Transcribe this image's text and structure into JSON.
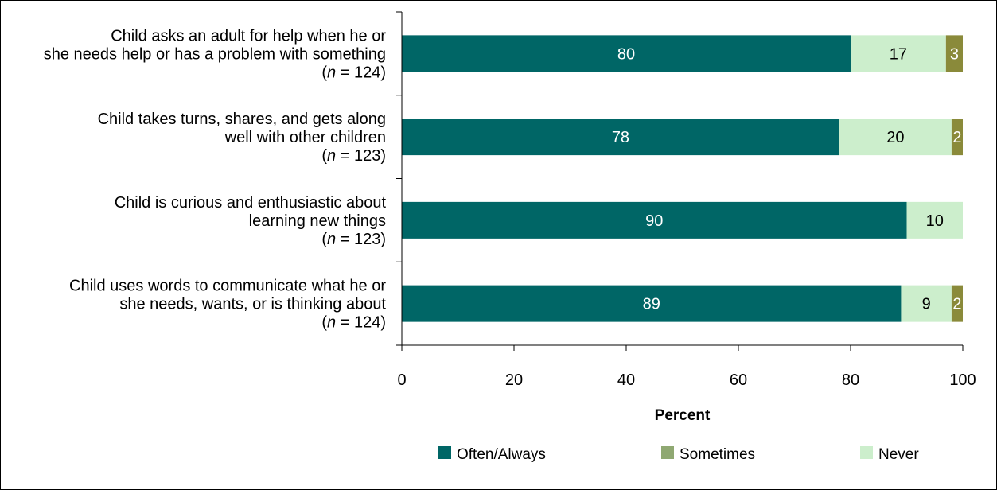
{
  "chart_data": {
    "type": "bar",
    "orientation": "horizontal",
    "stacked": true,
    "categories": [
      {
        "label": "Child asks an adult for help when he or she needs help or has a problem with something (n = 124)",
        "lines": [
          [
            {
              "text": "Child asks an adult for help when he or"
            }
          ],
          [
            {
              "text": "she needs help or has a problem with something"
            }
          ],
          [
            {
              "text": "("
            },
            {
              "text": "n",
              "italic": true
            },
            {
              "text": " = 124)"
            }
          ]
        ]
      },
      {
        "label": "Child takes turns, shares, and gets along well with other children (n = 123)",
        "lines": [
          [
            {
              "text": "Child takes turns, shares, and gets along"
            }
          ],
          [
            {
              "text": "well with other children"
            }
          ],
          [
            {
              "text": "("
            },
            {
              "text": "n",
              "italic": true
            },
            {
              "text": " = 123)"
            }
          ]
        ]
      },
      {
        "label": "Child is curious and enthusiastic about learning new things (n = 123)",
        "lines": [
          [
            {
              "text": "Child is curious and enthusiastic about"
            }
          ],
          [
            {
              "text": "learning new things"
            }
          ],
          [
            {
              "text": "("
            },
            {
              "text": "n",
              "italic": true
            },
            {
              "text": " = 123)"
            }
          ]
        ]
      },
      {
        "label": "Child uses words to communicate what he or she needs, wants, or is thinking about (n = 124)",
        "lines": [
          [
            {
              "text": "Child uses words to communicate what he or"
            }
          ],
          [
            {
              "text": "she needs, wants, or is thinking about"
            }
          ],
          [
            {
              "text": "("
            },
            {
              "text": "n",
              "italic": true
            },
            {
              "text": " = 124)"
            }
          ]
        ]
      }
    ],
    "series": [
      {
        "name": "Often/Always",
        "color": "#006666",
        "label_color": "#ffffff",
        "values": [
          80,
          78,
          90,
          89
        ]
      },
      {
        "name": "Never",
        "color": "#cceecc",
        "label_color": "#000000",
        "values": [
          17,
          20,
          10,
          9
        ]
      },
      {
        "name": "Sometimes",
        "color": "#8a8a3a",
        "label_color": "#ffffff",
        "values": [
          3,
          2,
          null,
          2
        ]
      }
    ],
    "legend_order": [
      "Often/Always",
      "Sometimes",
      "Never"
    ],
    "legend_colors": {
      "Often/Always": "#006666",
      "Sometimes": "#8fa872",
      "Never": "#cceecc"
    },
    "xlabel": "Percent",
    "xlim": [
      0,
      100
    ],
    "xticks": [
      0,
      20,
      40,
      60,
      80,
      100
    ],
    "grid": false,
    "legend_position": "bottom"
  }
}
